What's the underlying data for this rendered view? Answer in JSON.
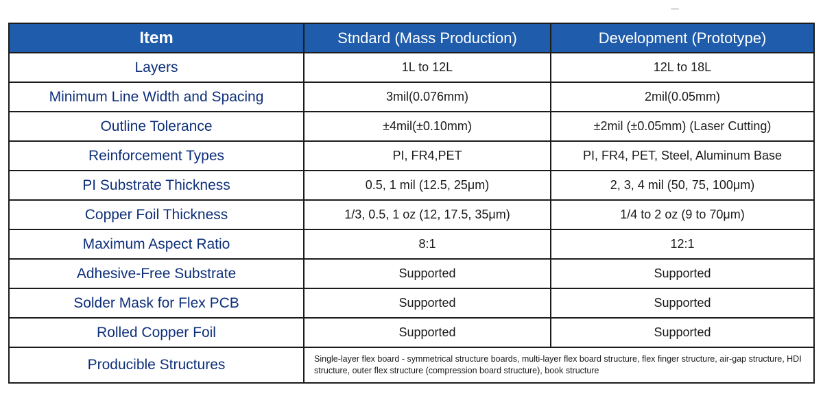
{
  "table": {
    "headers": {
      "item": "Item",
      "standard": "Stndard (Mass Production)",
      "development": "Development (Prototype)"
    },
    "rows": [
      {
        "item": "Layers",
        "standard": "1L to 12L",
        "development": "12L to 18L"
      },
      {
        "item": "Minimum Line Width and Spacing",
        "standard": "3mil(0.076mm)",
        "development": "2mil(0.05mm)"
      },
      {
        "item": "Outline Tolerance",
        "standard": "±4mil(±0.10mm)",
        "development": "±2mil (±0.05mm) (Laser Cutting)"
      },
      {
        "item": "Reinforcement Types",
        "standard": "PI, FR4,PET",
        "development": "PI, FR4, PET, Steel, Aluminum Base"
      },
      {
        "item": "PI Substrate Thickness",
        "standard": "0.5, 1 mil (12.5, 25μm)",
        "development": "2, 3, 4 mil (50, 75, 100μm)"
      },
      {
        "item": "Copper Foil Thickness",
        "standard": "1/3, 0.5, 1 oz (12, 17.5, 35μm)",
        "development": "1/4 to 2 oz (9 to 70μm)"
      },
      {
        "item": "Maximum Aspect Ratio",
        "standard": "8:1",
        "development": "12:1"
      },
      {
        "item": "Adhesive-Free Substrate",
        "standard": "Supported",
        "development": "Supported"
      },
      {
        "item": "Solder Mask for Flex PCB",
        "standard": "Supported",
        "development": "Supported"
      },
      {
        "item": "Rolled Copper Foil",
        "standard": "Supported",
        "development": "Supported"
      }
    ],
    "structures": {
      "item": "Producible Structures",
      "value": "Single-layer flex board - symmetrical structure boards, multi-layer flex board structure, flex finger structure, air-gap structure, HDI structure, outer flex structure (compression board structure), book structure"
    }
  },
  "colors": {
    "header_bg": "#1f5cab",
    "header_text": "#ffffff",
    "item_text": "#0d2f7a",
    "border": "#1b1b1b"
  }
}
